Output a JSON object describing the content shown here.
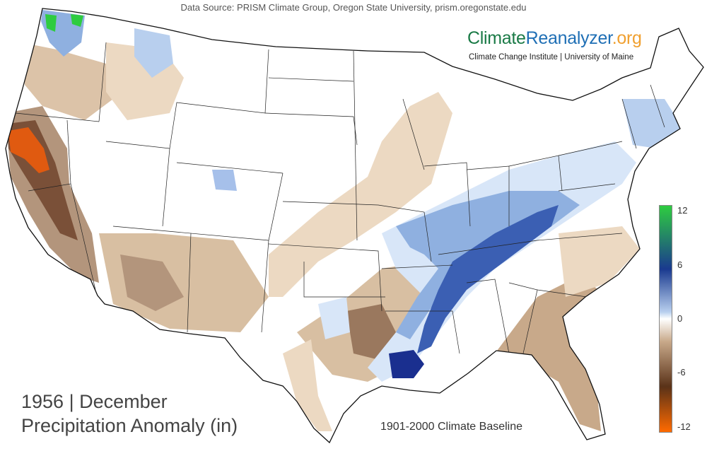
{
  "source_text": "Data Source: PRISM Climate Group, Oregon State University, prism.oregonstate.edu",
  "brand": {
    "part1": "Climate",
    "part2": "Reanalyzer",
    "part3": ".org"
  },
  "brand_sub": "Climate Change Institute | University of Maine",
  "title_line1": "1956 | December",
  "title_line2": "Precipitation Anomaly (in)",
  "baseline": "1901-2000 Climate Baseline",
  "legend": {
    "ticks": [
      "12",
      "6",
      "0",
      "-6",
      "-12"
    ],
    "colors": [
      "#2ecc40",
      "#1a3a8f",
      "#b8cfee",
      "#ffffff",
      "#c8a98a",
      "#5a3218",
      "#ff6a00"
    ]
  },
  "map": {
    "anomaly_colors": {
      "strong_dry": "#e05a10",
      "dry_dark": "#7a5038",
      "dry_mid": "#b3957c",
      "dry_light": "#ecd9c2",
      "wet_light": "#d8e6f8",
      "wet_mid": "#8fb0e0",
      "wet_dark": "#3b5fb3",
      "wet_max": "#1a2f8f",
      "very_wet": "#2ecc40"
    }
  }
}
